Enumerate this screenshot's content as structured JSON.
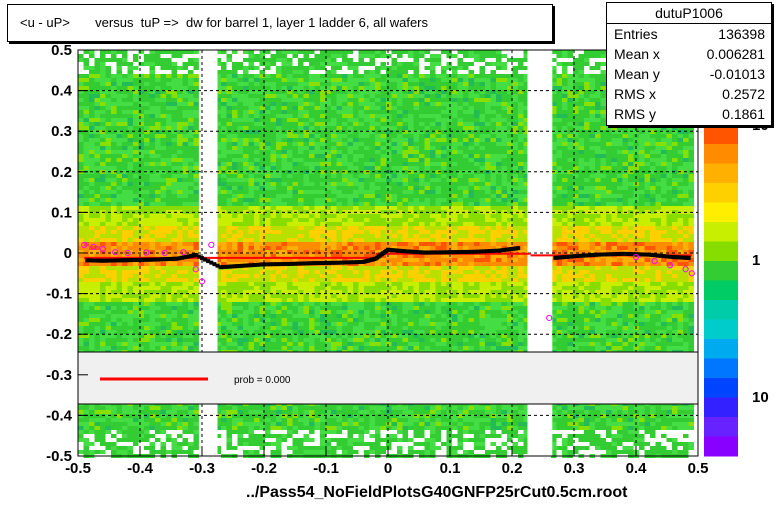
{
  "title": "<u - uP>       versus  tuP =>  dw for barrel 1, layer 1 ladder 6, all wafers",
  "footer": "../Pass54_NoFieldPlotsG40GNFP25rCut0.5cm.root",
  "stats": {
    "name": "dutuP1006",
    "rows": [
      {
        "k": "Entries",
        "v": "136398"
      },
      {
        "k": "Mean x",
        "v": "0.006281"
      },
      {
        "k": "Mean y",
        "v": "-0.01013"
      },
      {
        "k": "RMS x",
        "v": "0.2572"
      },
      {
        "k": "RMS y",
        "v": "0.1861"
      }
    ]
  },
  "legend": {
    "text": "prob = 0.000",
    "line_color": "#ff0000"
  },
  "chart_data": {
    "type": "heatmap",
    "xlim": [
      -0.5,
      0.5
    ],
    "ylim": [
      -0.5,
      0.5
    ],
    "x_ticks": [
      "-0.5",
      "-0.4",
      "-0.3",
      "-0.2",
      "-0.1",
      "0",
      "0.1",
      "0.2",
      "0.3",
      "0.4",
      "0.5"
    ],
    "y_ticks": [
      "-0.5",
      "-0.4",
      "-0.3",
      "-0.2",
      "-0.1",
      "0",
      "0.1",
      "0.2",
      "0.3",
      "0.4",
      "0.5"
    ],
    "x_tick_values": [
      -0.5,
      -0.4,
      -0.3,
      -0.2,
      -0.1,
      0,
      0.1,
      0.2,
      0.3,
      0.4,
      0.5
    ],
    "y_tick_values": [
      -0.5,
      -0.4,
      -0.3,
      -0.2,
      -0.1,
      0,
      0.1,
      0.2,
      0.3,
      0.4,
      0.5
    ],
    "grid": true,
    "color_scale_labels": [
      "10",
      "1",
      "10"
    ],
    "empty_x_bands": [
      [
        -0.305,
        -0.275
      ],
      [
        0.225,
        0.265
      ],
      [
        0.495,
        0.5
      ]
    ],
    "fit_line": {
      "color": "#ff0000",
      "segments": [
        {
          "x": [
            -0.49,
            -0.02
          ],
          "y": [
            -0.012,
            -0.012
          ]
        },
        {
          "x": [
            -0.02,
            0.23
          ],
          "y": [
            -0.002,
            -0.002
          ]
        },
        {
          "x": [
            0.23,
            0.49
          ],
          "y": [
            -0.006,
            -0.006
          ]
        }
      ]
    },
    "profile_points": {
      "color": "#000000",
      "x": [
        -0.485,
        -0.46,
        -0.43,
        -0.4,
        -0.37,
        -0.34,
        -0.31,
        -0.27,
        -0.24,
        -0.2,
        -0.16,
        -0.12,
        -0.08,
        -0.04,
        -0.02,
        0.0,
        0.03,
        0.06,
        0.1,
        0.14,
        0.18,
        0.21,
        0.27,
        0.3,
        0.34,
        0.38,
        0.42,
        0.46,
        0.485
      ],
      "y": [
        -0.018,
        -0.019,
        -0.018,
        -0.017,
        -0.016,
        -0.014,
        -0.005,
        -0.035,
        -0.032,
        -0.028,
        -0.027,
        -0.025,
        -0.024,
        -0.022,
        -0.014,
        0.008,
        0.004,
        0.001,
        0.002,
        0.003,
        0.006,
        0.012,
        -0.012,
        -0.008,
        -0.004,
        -0.002,
        -0.004,
        -0.01,
        -0.012
      ]
    },
    "outlier_points": {
      "color": "#ff00ff",
      "x": [
        -0.49,
        -0.475,
        -0.46,
        -0.44,
        -0.42,
        -0.39,
        -0.36,
        -0.33,
        -0.31,
        -0.3,
        -0.285,
        0.26,
        0.4,
        0.43,
        0.455,
        0.48,
        0.49
      ],
      "y": [
        0.02,
        0.015,
        0.01,
        0.002,
        0.0,
        0.001,
        0.0,
        0.002,
        -0.04,
        -0.07,
        0.02,
        -0.16,
        -0.01,
        -0.02,
        -0.03,
        -0.04,
        -0.05
      ]
    }
  }
}
